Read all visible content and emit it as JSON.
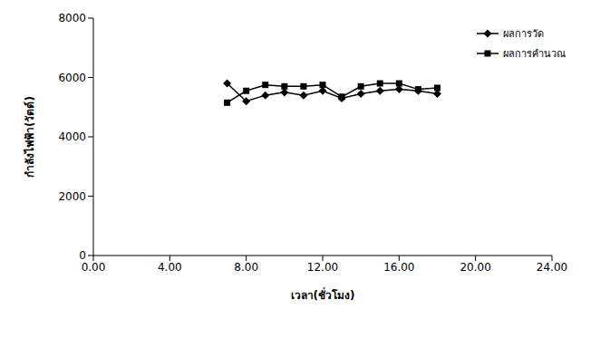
{
  "chart_data": {
    "type": "line",
    "x_label": "เวลา(ชั่วโมง)",
    "y_label": "กำลังไฟฟ้า(วัตต์)",
    "x": [
      7,
      8,
      9,
      10,
      11,
      12,
      13,
      14,
      15,
      16,
      17,
      18
    ],
    "series": [
      {
        "name": "ผลการวัด",
        "color": "#000000",
        "marker": "diamond",
        "values": [
          5800,
          5200,
          5400,
          5500,
          5400,
          5550,
          5300,
          5450,
          5550,
          5600,
          5550,
          5450
        ]
      },
      {
        "name": "ผลการคำนวณ",
        "color": "#000000",
        "marker": "square",
        "values": [
          5150,
          5550,
          5750,
          5700,
          5700,
          5750,
          5350,
          5700,
          5800,
          5800,
          5600,
          5650
        ]
      }
    ],
    "xlim": [
      0,
      24
    ],
    "xticks": [
      {
        "value": 0,
        "label": "0.00"
      },
      {
        "value": 4,
        "label": "4.00"
      },
      {
        "value": 8,
        "label": "8.00"
      },
      {
        "value": 12,
        "label": "12.00"
      },
      {
        "value": 16,
        "label": "16.00"
      },
      {
        "value": 20,
        "label": "20.00"
      },
      {
        "value": 24,
        "label": "24.00"
      }
    ],
    "ylim": [
      0,
      8000
    ],
    "yticks": [
      0,
      2000,
      4000,
      6000,
      8000
    ],
    "grid": false,
    "legend": "top-right"
  }
}
